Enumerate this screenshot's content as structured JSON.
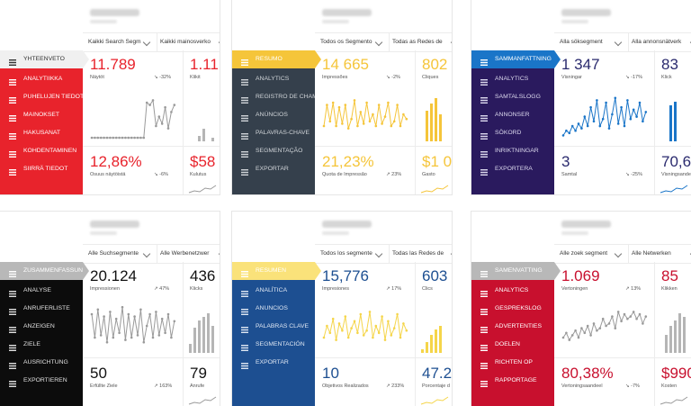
{
  "panels": [
    {
      "lang": "fi",
      "filters": [
        "Kaikki Search Segm",
        "Kaikki mainosverko"
      ],
      "accent": "#e8232c",
      "nav_bg": "#e8232c",
      "nav_text": "#ffffff",
      "active_bg": "#f0f0f0",
      "active_text": "#333333",
      "nav": [
        "YHTEENVETO",
        "ANALYTIIKKA",
        "PUHELUJEN TIEDOT",
        "MAINOKSET",
        "HAKUSANAT",
        "KOHDENTAMINEN",
        "SIIRRÄ TIEDOT"
      ],
      "m1_value": "11.789",
      "m1_label": "Näytöt",
      "m1_change": "↘ -32%",
      "m2_value": "1.11",
      "m2_label": "Klikit",
      "m3_value": "12,86%",
      "m3_label": "Osuus näytöistä",
      "m3_change": "↘ -6%",
      "m4_value": "$58",
      "m4_label": "Kulutus",
      "spark_color": "#9a9a9a",
      "bar_color": "#b5b5b5"
    },
    {
      "lang": "pt",
      "filters": [
        "Todos os Segmento",
        "Todas as Redes de"
      ],
      "accent": "#f5c53a",
      "nav_bg": "#35404c",
      "nav_text": "#d0d4d8",
      "active_bg": "#f5c53a",
      "active_text": "#ffffff",
      "nav": [
        "RESUMO",
        "ANALYTICS",
        "REGISTRO DE CHAMADAS",
        "ANÚNCIOS",
        "PALAVRAS-CHAVE",
        "SEGMENTAÇÃO",
        "EXPORTAR"
      ],
      "m1_value": "14 665",
      "m1_label": "Impressões",
      "m1_change": "↘ -2%",
      "m2_value": "802",
      "m2_label": "Cliques",
      "m3_value": "21,23%",
      "m3_label": "Quota de Impressão",
      "m3_change": "↗ 23%",
      "m4_value": "$1 0",
      "m4_label": "Gasto",
      "spark_color": "#f5c53a",
      "bar_color": "#f5c53a"
    },
    {
      "lang": "sv",
      "filters": [
        "Alla söksegment",
        "Alla annonsnätverk"
      ],
      "accent": "#2a2a6e",
      "nav_bg": "#2a1a5e",
      "nav_text": "#dcd9ee",
      "active_bg": "#1a75c8",
      "active_text": "#ffffff",
      "nav": [
        "SAMMANFATTNING",
        "ANALYTICS",
        "SAMTALSLOGG",
        "ANNONSER",
        "SÖKORD",
        "INRIKTNINGAR",
        "EXPORTERA"
      ],
      "m1_value": "1 347",
      "m1_label": "Visningar",
      "m1_change": "↘ -17%",
      "m2_value": "83",
      "m2_label": "Klick",
      "m3_value": "3",
      "m3_label": "Samtal",
      "m3_change": "↘ -25%",
      "m4_value": "70,6",
      "m4_label": "Visningsande",
      "spark_color": "#1a75c8",
      "bar_color": "#1a75c8"
    },
    {
      "lang": "de",
      "filters": [
        "Alle Suchsegmente",
        "Alle Werbenetzwer"
      ],
      "accent": "#111111",
      "nav_bg": "#0c0c0c",
      "nav_text": "#e0e0e0",
      "active_bg": "#b8b8b8",
      "active_text": "#ffffff",
      "nav": [
        "ZUSAMMENFASSUNG",
        "ANALYSE",
        "ANRUFERLISTE",
        "ANZEIGEN",
        "ZIELE",
        "AUSRICHTUNG",
        "EXPORTIEREN"
      ],
      "m1_value": "20.124",
      "m1_label": "Impressionen",
      "m1_change": "↗ 47%",
      "m2_value": "436",
      "m2_label": "Klicks",
      "m3_value": "50",
      "m3_label": "Erfüllte Ziele",
      "m3_change": "↗ 163%",
      "m4_value": "79",
      "m4_label": "Anrufe",
      "spark_color": "#9a9a9a",
      "bar_color": "#b5b5b5"
    },
    {
      "lang": "es",
      "filters": [
        "Todos los segmente",
        "Todas las Redes de"
      ],
      "accent": "#1d4f91",
      "nav_bg": "#1d4f91",
      "nav_text": "#dfe7f3",
      "active_bg": "#fae27a",
      "active_text": "#ffffff",
      "nav": [
        "RESUMEN",
        "ANALÍTICA",
        "ANUNCIOS",
        "PALABRAS CLAVE",
        "SEGMENTACIÓN",
        "EXPORTAR"
      ],
      "m1_value": "15,776",
      "m1_label": "Impresiones",
      "m1_change": "↗ 17%",
      "m2_value": "603",
      "m2_label": "Clics",
      "m3_value": "10",
      "m3_label": "Objetivos Realizados",
      "m3_change": "↗ 233%",
      "m4_value": "47.2",
      "m4_label": "Porcentaje d",
      "spark_color": "#f5d54a",
      "bar_color": "#f5d54a"
    },
    {
      "lang": "nl",
      "filters": [
        "Alle zoek segment",
        "Alle Netwerken"
      ],
      "accent": "#c8102e",
      "nav_bg": "#c8102e",
      "nav_text": "#ffffff",
      "active_bg": "#b8b8b8",
      "active_text": "#ffffff",
      "nav": [
        "SAMENVATTING",
        "ANALYTICS",
        "GESPREKSLOG",
        "ADVERTENTIES",
        "DOELEN",
        "RICHTEN OP",
        "RAPPORTAGE"
      ],
      "m1_value": "1.069",
      "m1_label": "Vertoningen",
      "m1_change": "↗ 13%",
      "m2_value": "85",
      "m2_label": "Klikken",
      "m3_value": "80,38%",
      "m3_label": "Vertoningsaandeel",
      "m3_change": "↘ -7%",
      "m4_value": "$990",
      "m4_label": "Kosten",
      "spark_color": "#9a9a9a",
      "bar_color": "#b5b5b5"
    }
  ]
}
